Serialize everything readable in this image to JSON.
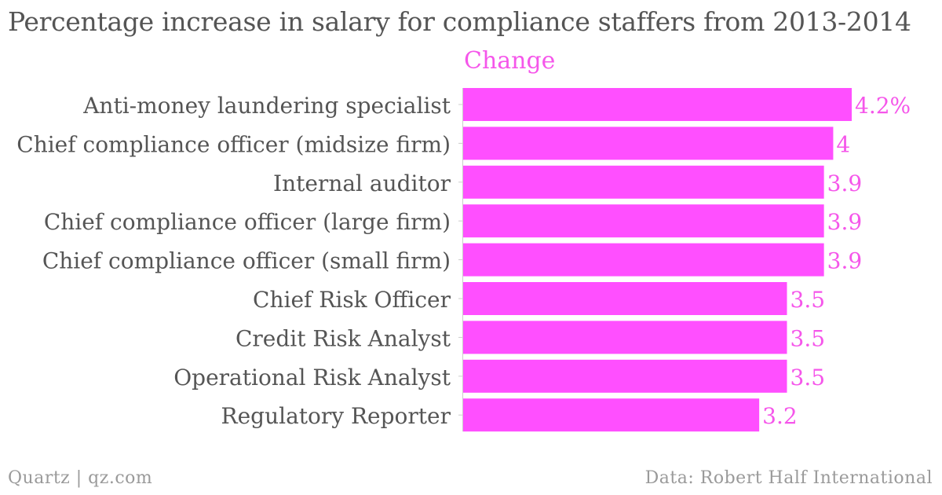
{
  "chart_data": {
    "type": "bar",
    "orientation": "horizontal",
    "title": "Percentage increase in salary for compliance staffers from 2013-2014",
    "series_name": "Change",
    "categories": [
      "Anti-money laundering specialist",
      "Chief compliance officer (midsize firm)",
      "Internal auditor",
      "Chief compliance officer (large firm)",
      "Chief compliance officer (small firm)",
      "Chief Risk Officer",
      "Credit Risk Analyst",
      "Operational Risk Analyst",
      "Regulatory Reporter"
    ],
    "values": [
      4.2,
      4,
      3.9,
      3.9,
      3.9,
      3.5,
      3.5,
      3.5,
      3.2
    ],
    "value_labels": [
      "4.2%",
      "4",
      "3.9",
      "3.9",
      "3.9",
      "3.5",
      "3.5",
      "3.5",
      "3.2"
    ],
    "xlim": [
      0,
      4.2
    ],
    "grid": false,
    "color": "#ff4fff",
    "label_color": "#f556ea"
  },
  "footer": {
    "source_left": "Quartz | qz.com",
    "source_right": "Data: Robert Half International"
  }
}
